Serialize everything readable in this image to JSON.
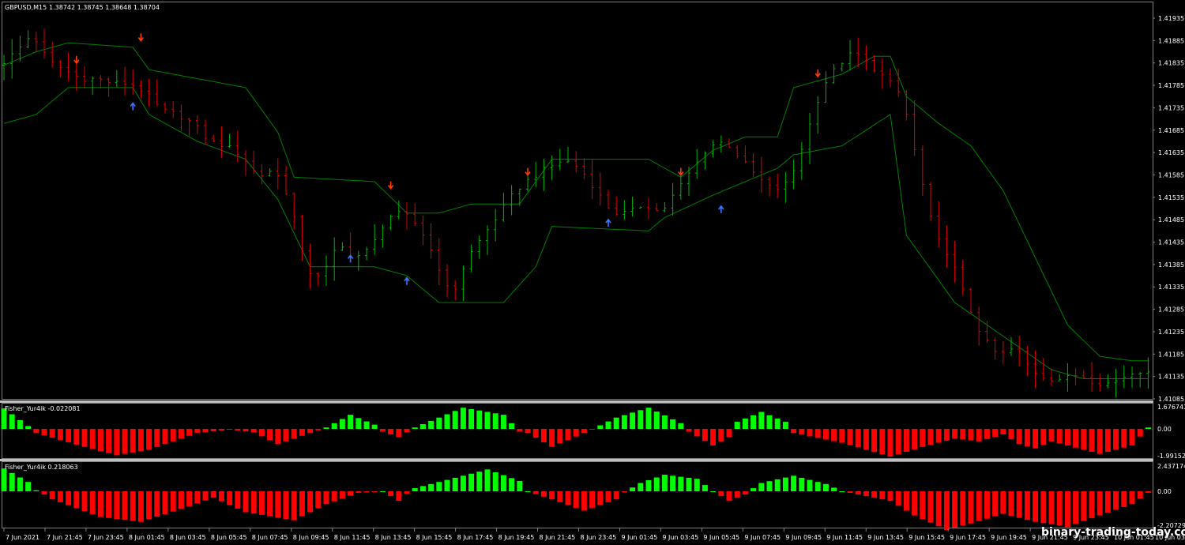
{
  "header": {
    "symbol": "GBPUSD,M15",
    "ohlc": "1.38742 1.38745 1.38648 1.38704"
  },
  "indicator1": {
    "label": "Fisher_Yur4ik -0.022081",
    "ticks": [
      "1.676743",
      "0.00",
      "-1.991527"
    ]
  },
  "indicator2": {
    "label": "Fisher_Yur4ik 0.218063",
    "ticks": [
      "2.437174",
      "0.00",
      "-2.20729"
    ]
  },
  "watermark": "binary-trading-today.com",
  "colors": {
    "background": "#000000",
    "bull_bar": "#00b400",
    "bear_bar": "#e00000",
    "channel": "#008000",
    "arrow_down": "#ff3c00",
    "arrow_up": "#3c78ff",
    "hist_pos": "#00ff00",
    "hist_neg": "#ff0000",
    "separator": "#c0c0c0"
  },
  "chart_data": [
    {
      "type": "ohlc",
      "symbol": "GBPUSD",
      "timeframe": "M15",
      "ylim": [
        1.41085,
        1.41935
      ],
      "y_ticks": [
        "1.41935",
        "1.41885",
        "1.41835",
        "1.41785",
        "1.41735",
        "1.41685",
        "1.41635",
        "1.41585",
        "1.41535",
        "1.41485",
        "1.41435",
        "1.41385",
        "1.41335",
        "1.41285",
        "1.41235",
        "1.41185",
        "1.41135",
        "1.41085"
      ],
      "x_ticks": [
        "7 Jun 2021",
        "7 Jun 21:45",
        "7 Jun 23:45",
        "8 Jun 01:45",
        "8 Jun 03:45",
        "8 Jun 05:45",
        "8 Jun 07:45",
        "8 Jun 09:45",
        "8 Jun 11:45",
        "8 Jun 13:45",
        "8 Jun 15:45",
        "8 Jun 17:45",
        "8 Jun 19:45",
        "8 Jun 21:45",
        "8 Jun 23:45",
        "9 Jun 01:45",
        "9 Jun 03:45",
        "9 Jun 05:45",
        "9 Jun 07:45",
        "9 Jun 09:45",
        "9 Jun 11:45",
        "9 Jun 13:45",
        "9 Jun 15:45",
        "9 Jun 17:45",
        "9 Jun 19:45",
        "9 Jun 21:45",
        "9 Jun 23:45",
        "10 Jun 01:45",
        "10 Jun 03:4"
      ],
      "close_path": [
        [
          0,
          1.4183
        ],
        [
          2,
          1.4186
        ],
        [
          4,
          1.419
        ],
        [
          6,
          1.4184
        ],
        [
          8,
          1.4182
        ],
        [
          10,
          1.418
        ],
        [
          12,
          1.418
        ],
        [
          14,
          1.4179
        ],
        [
          16,
          1.4179
        ],
        [
          18,
          1.4177
        ],
        [
          20,
          1.4173
        ],
        [
          22,
          1.4172
        ],
        [
          24,
          1.417
        ],
        [
          26,
          1.4166
        ],
        [
          28,
          1.4165
        ],
        [
          30,
          1.4163
        ],
        [
          32,
          1.4158
        ],
        [
          34,
          1.416
        ],
        [
          36,
          1.4153
        ],
        [
          38,
          1.4137
        ],
        [
          40,
          1.4136
        ],
        [
          42,
          1.4143
        ],
        [
          44,
          1.414
        ],
        [
          46,
          1.4142
        ],
        [
          48,
          1.4149
        ],
        [
          50,
          1.415
        ],
        [
          52,
          1.4147
        ],
        [
          54,
          1.414
        ],
        [
          56,
          1.4131
        ],
        [
          58,
          1.414
        ],
        [
          60,
          1.4145
        ],
        [
          62,
          1.415
        ],
        [
          64,
          1.4155
        ],
        [
          66,
          1.4158
        ],
        [
          68,
          1.416
        ],
        [
          70,
          1.4162
        ],
        [
          72,
          1.416
        ],
        [
          74,
          1.4155
        ],
        [
          76,
          1.415
        ],
        [
          78,
          1.415
        ],
        [
          80,
          1.4152
        ],
        [
          82,
          1.415
        ],
        [
          84,
          1.4155
        ],
        [
          86,
          1.416
        ],
        [
          88,
          1.4165
        ],
        [
          90,
          1.4166
        ],
        [
          92,
          1.4162
        ],
        [
          94,
          1.4158
        ],
        [
          96,
          1.4155
        ],
        [
          98,
          1.4157
        ],
        [
          100,
          1.4167
        ],
        [
          102,
          1.4178
        ],
        [
          104,
          1.4183
        ],
        [
          106,
          1.4186
        ],
        [
          108,
          1.4183
        ],
        [
          110,
          1.418
        ],
        [
          112,
          1.4176
        ],
        [
          114,
          1.416
        ],
        [
          116,
          1.4145
        ],
        [
          118,
          1.414
        ],
        [
          120,
          1.413
        ],
        [
          122,
          1.4122
        ],
        [
          124,
          1.4118
        ],
        [
          126,
          1.412
        ],
        [
          128,
          1.4115
        ],
        [
          130,
          1.4113
        ],
        [
          132,
          1.4113
        ],
        [
          134,
          1.4114
        ],
        [
          136,
          1.4112
        ],
        [
          138,
          1.4112
        ],
        [
          140,
          1.4114
        ],
        [
          142,
          1.4115
        ]
      ],
      "channel_upper": [
        [
          0,
          1.4183
        ],
        [
          4,
          1.4186
        ],
        [
          8,
          1.4188
        ],
        [
          16,
          1.4187
        ],
        [
          18,
          1.4182
        ],
        [
          24,
          1.418
        ],
        [
          30,
          1.4178
        ],
        [
          34,
          1.4168
        ],
        [
          36,
          1.4158
        ],
        [
          46,
          1.4157
        ],
        [
          50,
          1.415
        ],
        [
          54,
          1.415
        ],
        [
          58,
          1.4152
        ],
        [
          64,
          1.4152
        ],
        [
          68,
          1.4162
        ],
        [
          80,
          1.4162
        ],
        [
          84,
          1.4158
        ],
        [
          88,
          1.4164
        ],
        [
          92,
          1.4167
        ],
        [
          96,
          1.4167
        ],
        [
          98,
          1.4178
        ],
        [
          104,
          1.4181
        ],
        [
          108,
          1.4185
        ],
        [
          110,
          1.4185
        ],
        [
          112,
          1.4176
        ],
        [
          116,
          1.417
        ],
        [
          120,
          1.4165
        ],
        [
          124,
          1.4155
        ],
        [
          128,
          1.414
        ],
        [
          132,
          1.4125
        ],
        [
          136,
          1.4118
        ],
        [
          140,
          1.4117
        ],
        [
          142,
          1.4117
        ]
      ],
      "channel_lower": [
        [
          0,
          1.417
        ],
        [
          4,
          1.4172
        ],
        [
          8,
          1.4178
        ],
        [
          16,
          1.4178
        ],
        [
          18,
          1.4172
        ],
        [
          24,
          1.4166
        ],
        [
          30,
          1.4162
        ],
        [
          34,
          1.4153
        ],
        [
          38,
          1.4138
        ],
        [
          46,
          1.4138
        ],
        [
          50,
          1.4136
        ],
        [
          54,
          1.413
        ],
        [
          62,
          1.413
        ],
        [
          66,
          1.4138
        ],
        [
          68,
          1.4147
        ],
        [
          80,
          1.4146
        ],
        [
          82,
          1.4149
        ],
        [
          88,
          1.4154
        ],
        [
          92,
          1.4157
        ],
        [
          96,
          1.416
        ],
        [
          98,
          1.4163
        ],
        [
          104,
          1.4165
        ],
        [
          110,
          1.4172
        ],
        [
          112,
          1.4145
        ],
        [
          118,
          1.413
        ],
        [
          122,
          1.4125
        ],
        [
          126,
          1.412
        ],
        [
          130,
          1.4115
        ],
        [
          134,
          1.4113
        ],
        [
          142,
          1.4113
        ]
      ],
      "arrows": [
        {
          "x": 9,
          "price": 1.4184,
          "dir": "down"
        },
        {
          "x": 17,
          "price": 1.4189,
          "dir": "down"
        },
        {
          "x": 16,
          "price": 1.4174,
          "dir": "up"
        },
        {
          "x": 43,
          "price": 1.414,
          "dir": "up"
        },
        {
          "x": 48,
          "price": 1.4156,
          "dir": "down"
        },
        {
          "x": 50,
          "price": 1.4135,
          "dir": "up"
        },
        {
          "x": 65,
          "price": 1.4159,
          "dir": "down"
        },
        {
          "x": 75,
          "price": 1.4148,
          "dir": "up"
        },
        {
          "x": 84,
          "price": 1.4159,
          "dir": "down"
        },
        {
          "x": 89,
          "price": 1.4151,
          "dir": "up"
        },
        {
          "x": 101,
          "price": 1.4181,
          "dir": "down"
        }
      ]
    },
    {
      "type": "bar",
      "name": "Fisher_Yur4ik -0.022081",
      "ylim": [
        -1.991527,
        1.676743
      ],
      "wave": [
        [
          0,
          1.45
        ],
        [
          3,
          0.2
        ],
        [
          4,
          -0.3
        ],
        [
          10,
          -1.3
        ],
        [
          14,
          -1.9
        ],
        [
          18,
          -1.5
        ],
        [
          24,
          -0.3
        ],
        [
          28,
          -0.05
        ],
        [
          31,
          -0.25
        ],
        [
          34,
          -1.1
        ],
        [
          37,
          -0.5
        ],
        [
          40,
          0.1
        ],
        [
          43,
          1.0
        ],
        [
          46,
          0.3
        ],
        [
          47,
          -0.2
        ],
        [
          49,
          -0.6
        ],
        [
          51,
          0.1
        ],
        [
          57,
          1.5
        ],
        [
          62,
          1.0
        ],
        [
          64,
          -0.2
        ],
        [
          65,
          -0.3
        ],
        [
          68,
          -1.3
        ],
        [
          72,
          -0.3
        ],
        [
          76,
          0.8
        ],
        [
          80,
          1.5
        ],
        [
          84,
          0.4
        ],
        [
          85,
          -0.2
        ],
        [
          88,
          -1.2
        ],
        [
          90,
          -0.6
        ],
        [
          91,
          0.5
        ],
        [
          94,
          1.2
        ],
        [
          97,
          0.5
        ],
        [
          98,
          -0.3
        ],
        [
          104,
          -1.0
        ],
        [
          110,
          -2.0
        ],
        [
          114,
          -1.3
        ],
        [
          118,
          -0.7
        ],
        [
          121,
          -0.9
        ],
        [
          124,
          -0.4
        ],
        [
          126,
          -1.1
        ],
        [
          128,
          -1.4
        ],
        [
          130,
          -0.9
        ],
        [
          132,
          -1.2
        ],
        [
          136,
          -1.8
        ],
        [
          140,
          -1.2
        ],
        [
          142,
          0.1
        ]
      ]
    },
    {
      "type": "bar",
      "name": "Fisher_Yur4ik 0.218063",
      "ylim": [
        -2.20729,
        2.437174
      ],
      "wave": [
        [
          0,
          2.2
        ],
        [
          3,
          0.9
        ],
        [
          4,
          0.1
        ],
        [
          6,
          -0.5
        ],
        [
          12,
          -1.6
        ],
        [
          17,
          -1.9
        ],
        [
          22,
          -1.1
        ],
        [
          26,
          -0.4
        ],
        [
          30,
          -1.3
        ],
        [
          36,
          -1.8
        ],
        [
          40,
          -0.8
        ],
        [
          44,
          -0.1
        ],
        [
          47,
          0.0
        ],
        [
          49,
          -0.6
        ],
        [
          51,
          0.3
        ],
        [
          56,
          1.3
        ],
        [
          60,
          2.1
        ],
        [
          64,
          1.0
        ],
        [
          65,
          0.0
        ],
        [
          68,
          -0.5
        ],
        [
          72,
          -1.2
        ],
        [
          76,
          -0.5
        ],
        [
          79,
          0.8
        ],
        [
          82,
          1.6
        ],
        [
          86,
          1.2
        ],
        [
          88,
          0.0
        ],
        [
          90,
          -0.6
        ],
        [
          92,
          -0.2
        ],
        [
          94,
          0.8
        ],
        [
          98,
          1.5
        ],
        [
          102,
          0.7
        ],
        [
          104,
          0.0
        ],
        [
          110,
          -0.6
        ],
        [
          113,
          -1.5
        ],
        [
          117,
          -2.4
        ],
        [
          120,
          -2.0
        ],
        [
          124,
          -1.4
        ],
        [
          128,
          -1.9
        ],
        [
          132,
          -2.2
        ],
        [
          136,
          -1.5
        ],
        [
          140,
          -0.8
        ],
        [
          142,
          -0.1
        ]
      ]
    }
  ]
}
